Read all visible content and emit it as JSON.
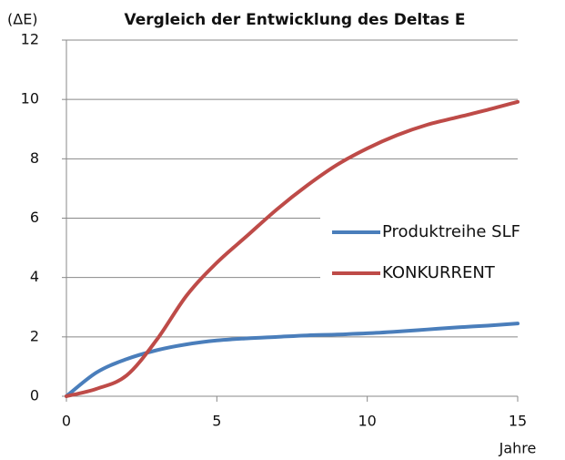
{
  "chart_data": {
    "type": "line",
    "title": "Vergleich der Entwicklung des Deltas E",
    "y_label": "(ΔE)",
    "x_label": "Jahre",
    "x": [
      0,
      1,
      2,
      3,
      4,
      5,
      6,
      7,
      8,
      9,
      10,
      11,
      12,
      13,
      14,
      15
    ],
    "series": [
      {
        "name": "Produktreihe SLF",
        "color": "#4a7ebb",
        "values": [
          0,
          0.8,
          1.25,
          1.55,
          1.75,
          1.88,
          1.95,
          2.0,
          2.05,
          2.08,
          2.12,
          2.18,
          2.25,
          2.32,
          2.38,
          2.45
        ]
      },
      {
        "name": "KONKURRENT",
        "color": "#be4b48",
        "values": [
          0,
          0.25,
          0.7,
          1.9,
          3.4,
          4.5,
          5.4,
          6.3,
          7.1,
          7.8,
          8.35,
          8.8,
          9.15,
          9.4,
          9.65,
          9.92
        ]
      }
    ],
    "xlim": [
      0,
      15
    ],
    "xticks": [
      0,
      5,
      10,
      15
    ],
    "ylim": [
      0,
      12
    ],
    "yticks": [
      0,
      2,
      4,
      6,
      8,
      10,
      12
    ],
    "grid": true,
    "smooth": true,
    "legend": "right"
  }
}
